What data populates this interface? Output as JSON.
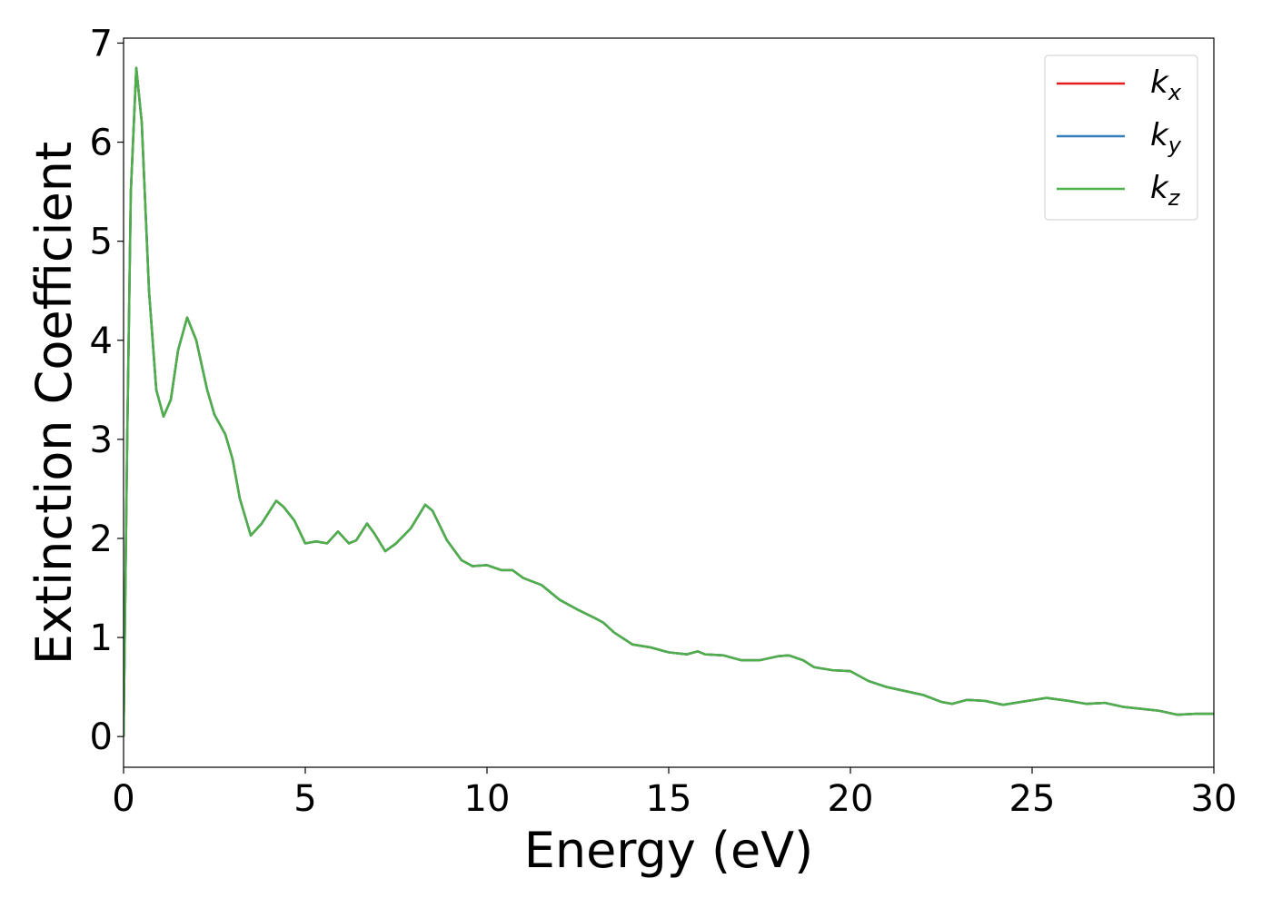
{
  "chart_data": {
    "type": "line",
    "xlabel": "Energy (eV)",
    "ylabel": "Extinction Coefficient",
    "x": [
      0,
      0.1,
      0.2,
      0.35,
      0.5,
      0.7,
      0.9,
      1.1,
      1.3,
      1.5,
      1.75,
      2.0,
      2.3,
      2.5,
      2.8,
      3.0,
      3.2,
      3.5,
      3.8,
      4.2,
      4.4,
      4.7,
      5.0,
      5.3,
      5.6,
      5.9,
      6.2,
      6.4,
      6.7,
      6.9,
      7.2,
      7.5,
      7.9,
      8.3,
      8.5,
      8.9,
      9.3,
      9.6,
      10,
      10.4,
      10.7,
      11,
      11.5,
      12,
      12.5,
      13,
      13.2,
      13.5,
      14,
      14.5,
      15,
      15.5,
      15.8,
      16,
      16.5,
      17,
      17.5,
      18,
      18.3,
      18.7,
      19,
      19.5,
      20,
      20.5,
      21,
      21.5,
      22,
      22.5,
      22.8,
      23.2,
      23.7,
      24.2,
      24.7,
      25.4,
      26,
      26.5,
      27,
      27.5,
      28,
      28.5,
      29,
      29.5,
      30
    ],
    "series": [
      {
        "name": "kx",
        "color": "#e41a1c",
        "values": [
          0,
          3.0,
          5.5,
          6.75,
          6.2,
          4.5,
          3.5,
          3.23,
          3.4,
          3.9,
          4.23,
          4.0,
          3.5,
          3.25,
          3.05,
          2.8,
          2.4,
          2.03,
          2.15,
          2.38,
          2.32,
          2.18,
          1.95,
          1.97,
          1.95,
          2.07,
          1.95,
          1.98,
          2.15,
          2.05,
          1.87,
          1.95,
          2.1,
          2.34,
          2.28,
          1.98,
          1.78,
          1.72,
          1.73,
          1.68,
          1.68,
          1.6,
          1.53,
          1.38,
          1.28,
          1.19,
          1.15,
          1.05,
          0.93,
          0.9,
          0.85,
          0.83,
          0.86,
          0.83,
          0.82,
          0.77,
          0.77,
          0.81,
          0.82,
          0.77,
          0.7,
          0.67,
          0.66,
          0.56,
          0.5,
          0.46,
          0.42,
          0.35,
          0.33,
          0.37,
          0.36,
          0.32,
          0.35,
          0.39,
          0.36,
          0.33,
          0.34,
          0.3,
          0.28,
          0.26,
          0.22,
          0.23,
          0.23
        ]
      },
      {
        "name": "ky",
        "color": "#377eb8",
        "values": [
          0,
          3.0,
          5.5,
          6.75,
          6.2,
          4.5,
          3.5,
          3.23,
          3.4,
          3.9,
          4.23,
          4.0,
          3.5,
          3.25,
          3.05,
          2.8,
          2.4,
          2.03,
          2.15,
          2.38,
          2.32,
          2.18,
          1.95,
          1.97,
          1.95,
          2.07,
          1.95,
          1.98,
          2.15,
          2.05,
          1.87,
          1.95,
          2.1,
          2.34,
          2.28,
          1.98,
          1.78,
          1.72,
          1.73,
          1.68,
          1.68,
          1.6,
          1.53,
          1.38,
          1.28,
          1.19,
          1.15,
          1.05,
          0.93,
          0.9,
          0.85,
          0.83,
          0.86,
          0.83,
          0.82,
          0.77,
          0.77,
          0.81,
          0.82,
          0.77,
          0.7,
          0.67,
          0.66,
          0.56,
          0.5,
          0.46,
          0.42,
          0.35,
          0.33,
          0.37,
          0.36,
          0.32,
          0.35,
          0.39,
          0.36,
          0.33,
          0.34,
          0.3,
          0.28,
          0.26,
          0.22,
          0.23,
          0.23
        ]
      },
      {
        "name": "kz",
        "color": "#4daf4a",
        "values": [
          0,
          3.0,
          5.5,
          6.75,
          6.2,
          4.5,
          3.5,
          3.23,
          3.4,
          3.9,
          4.23,
          4.0,
          3.5,
          3.25,
          3.05,
          2.8,
          2.4,
          2.03,
          2.15,
          2.38,
          2.32,
          2.18,
          1.95,
          1.97,
          1.95,
          2.07,
          1.95,
          1.98,
          2.15,
          2.05,
          1.87,
          1.95,
          2.1,
          2.34,
          2.28,
          1.98,
          1.78,
          1.72,
          1.73,
          1.68,
          1.68,
          1.6,
          1.53,
          1.38,
          1.28,
          1.19,
          1.15,
          1.05,
          0.93,
          0.9,
          0.85,
          0.83,
          0.86,
          0.83,
          0.82,
          0.77,
          0.77,
          0.81,
          0.82,
          0.77,
          0.7,
          0.67,
          0.66,
          0.56,
          0.5,
          0.46,
          0.42,
          0.35,
          0.33,
          0.37,
          0.36,
          0.32,
          0.35,
          0.39,
          0.36,
          0.33,
          0.34,
          0.3,
          0.28,
          0.26,
          0.22,
          0.23,
          0.23
        ]
      }
    ],
    "xlim": [
      0,
      30
    ],
    "xticks": [
      0,
      5,
      10,
      15,
      20,
      25,
      30
    ],
    "ylim": [
      -0.31,
      7.05
    ],
    "yticks": [
      0,
      1,
      2,
      3,
      4,
      5,
      6,
      7
    ],
    "legend": "upper right",
    "grid": false
  }
}
